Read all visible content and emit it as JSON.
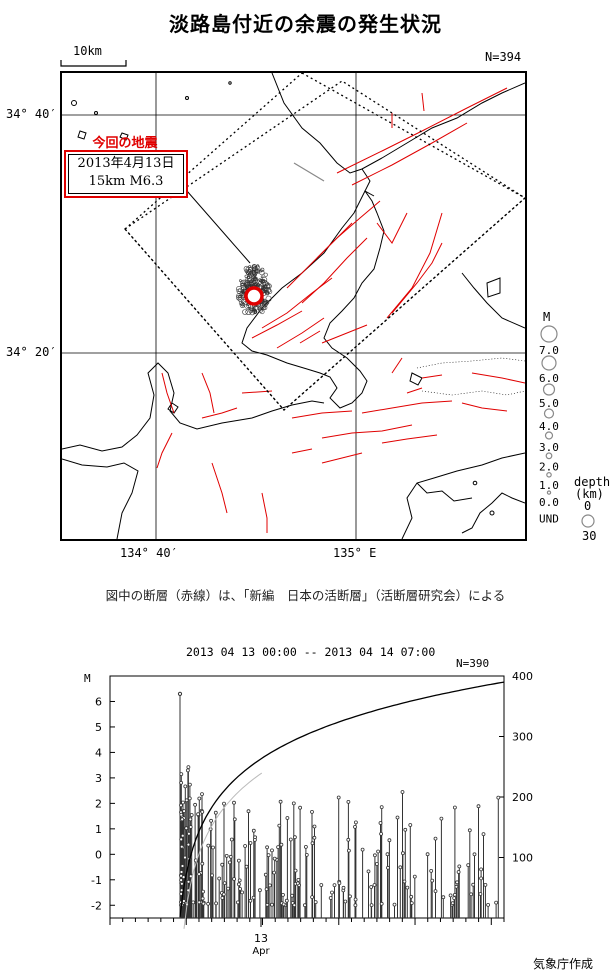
{
  "title": "淡路島付近の余震の発生状況",
  "map": {
    "scale_label": "10km",
    "count": "N=394",
    "lat_labels": [
      "34° 40′",
      "34° 20′"
    ],
    "lon_labels": [
      "134° 40′",
      "135° E"
    ],
    "quake_title": "今回の地震",
    "quake_date": "2013年4月13日",
    "quake_detail": "15km   M6.3",
    "mag_legend_title": "M",
    "mag_legend": [
      "7.0",
      "6.0",
      "5.0",
      "4.0",
      "3.0",
      "2.0",
      "1.0",
      "0.0",
      "UND"
    ],
    "depth_legend_title": "depth",
    "depth_unit": "(km)",
    "depth_legend": [
      "0",
      "30"
    ],
    "fault_color": "#e00000"
  },
  "caption": "図中の断層（赤線）は、「新編　日本の活断層」（活断層研究会）による",
  "chart_data": {
    "type": "scatter",
    "title": "2013 04 13 00:00 -- 2013 04 14 07:00",
    "count": "N=390",
    "ylabel": "M",
    "ylim": [
      -2.5,
      7
    ],
    "y_ticks": [
      "6",
      "5",
      "4",
      "3",
      "2",
      "1",
      "0",
      "-1",
      "-2"
    ],
    "y2_lim": [
      0,
      400
    ],
    "y2_ticks": [
      "400",
      "300",
      "200",
      "100"
    ],
    "x_ticks": [
      "13"
    ],
    "x_sublabel": "Apr",
    "mainshock_magnitude": 6.3
  },
  "footer": "気象庁作成"
}
